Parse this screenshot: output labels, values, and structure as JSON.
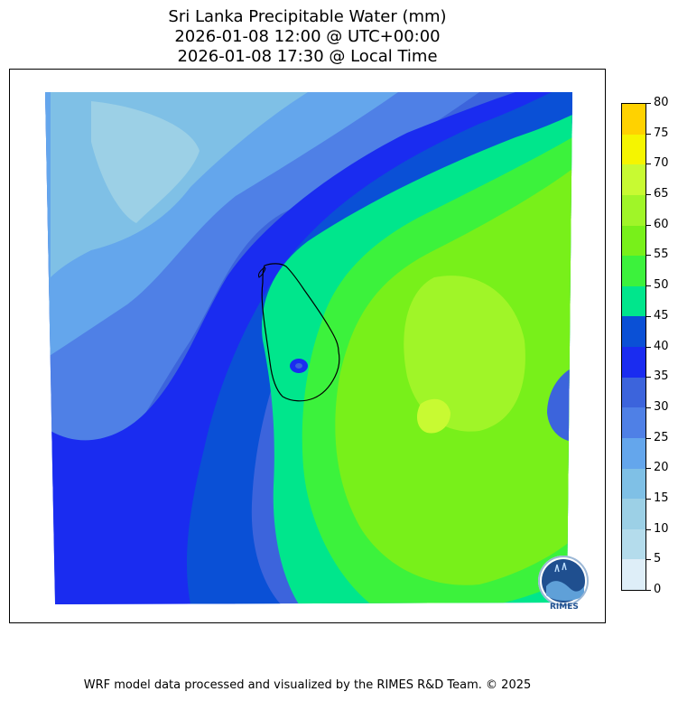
{
  "title": {
    "line1": "Sri Lanka Precipitable Water (mm)",
    "line2": "2026-01-08 12:00 @ UTC+00:00",
    "line3": "2026-01-08 17:30 @ Local Time"
  },
  "colorbar": {
    "ticks": [
      "0",
      "5",
      "10",
      "15",
      "20",
      "25",
      "30",
      "35",
      "40",
      "45",
      "50",
      "55",
      "60",
      "65",
      "70",
      "75",
      "80"
    ],
    "colors": [
      "#deeef8",
      "#b4dcec",
      "#9cd0e6",
      "#7fc0e6",
      "#64a6ec",
      "#4f80e6",
      "#3c64dc",
      "#1a2cf0",
      "#0a50d6",
      "#00e68c",
      "#3cf23c",
      "#78f01a",
      "#a0f528",
      "#c8fa32",
      "#f5f500",
      "#ffd200"
    ]
  },
  "map": {
    "region": "Sri Lanka",
    "logo_text": "RIMES"
  },
  "footer": "WRF model data processed and visualized by the RIMES R&D Team. © 2025"
}
